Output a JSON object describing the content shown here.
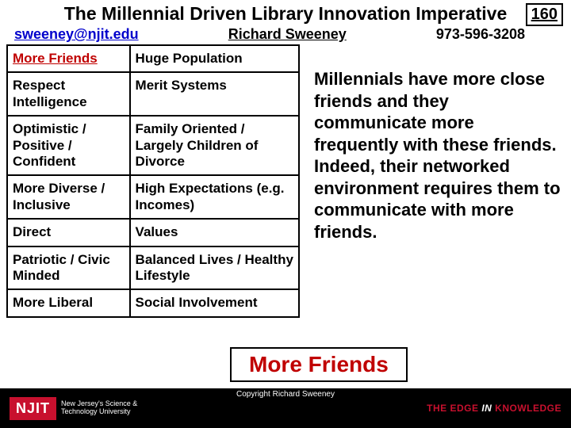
{
  "header": {
    "title": "The Millennial Driven Library Innovation Imperative",
    "page_number": "160",
    "email": "sweeney@njit.edu",
    "author": "Richard Sweeney",
    "phone": "973-596-3208"
  },
  "table": {
    "rows": [
      {
        "c1": "More Friends",
        "c2": "Huge Population",
        "hl": true
      },
      {
        "c1": "Respect Intelligence",
        "c2": "Merit Systems",
        "hl": false
      },
      {
        "c1": "Optimistic / Positive / Confident",
        "c2": "Family Oriented / Largely Children of Divorce",
        "hl": false
      },
      {
        "c1": "More Diverse / Inclusive",
        "c2": "High Expectations (e.g. Incomes)",
        "hl": false
      },
      {
        "c1": "Direct",
        "c2": "Values",
        "hl": false
      },
      {
        "c1": "Patriotic / Civic Minded",
        "c2": "Balanced Lives / Healthy Lifestyle",
        "hl": false
      },
      {
        "c1": "More Liberal",
        "c2": "Social Involvement",
        "hl": false
      }
    ]
  },
  "side_text": "Millennials  have more close friends and they communicate more frequently with these friends.  Indeed, their networked environment requires them to communicate with more friends.",
  "callout": "More Friends",
  "footer": {
    "logo_text": "NJIT",
    "logo_sub1": "New Jersey's Science &",
    "logo_sub2": "Technology University",
    "copyright": "Copyright Richard Sweeney",
    "edge_pre": "THE EDGE ",
    "edge_in": "IN",
    "edge_post": " KNOWLEDGE"
  },
  "colors": {
    "highlight": "#c00000",
    "brand_red": "#c8102e",
    "link": "#0000cc",
    "black": "#000000",
    "white": "#ffffff"
  }
}
